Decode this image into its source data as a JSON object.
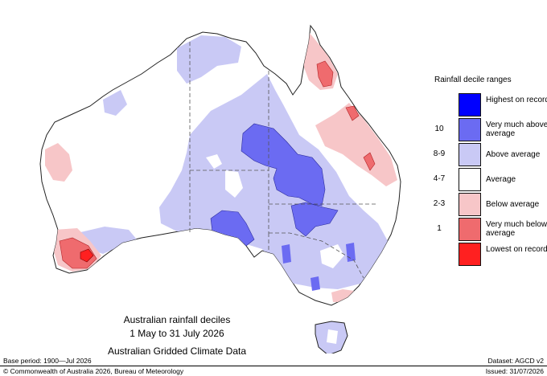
{
  "map": {
    "caption": [
      "Australian rainfall deciles",
      "1 May to 31 July 2026",
      "Australian Gridded Climate Data"
    ],
    "colors": {
      "highest": "#0000ff",
      "very_much_above": "#6b6bf2",
      "above": "#c9c9f5",
      "average": "#ffffff",
      "below": "#f7c6c8",
      "very_much_below": "#ef6b6e",
      "lowest": "#ff2020",
      "land_outline": "#222222",
      "state_border": "#555555"
    }
  },
  "legend": {
    "title": "Rainfall decile ranges",
    "items": [
      {
        "range": "",
        "label": "Highest on record",
        "color": "#0000ff"
      },
      {
        "range": "10",
        "label": "Very much above average",
        "color": "#6b6bf2"
      },
      {
        "range": "8-9",
        "label": "Above average",
        "color": "#c9c9f5"
      },
      {
        "range": "4-7",
        "label": "Average",
        "color": "#ffffff"
      },
      {
        "range": "2-3",
        "label": "Below average",
        "color": "#f7c6c8"
      },
      {
        "range": "1",
        "label": "Very much below average",
        "color": "#ef6b6e"
      },
      {
        "range": "",
        "label": "Lowest on record",
        "color": "#ff2020"
      }
    ]
  },
  "footer": {
    "base_period": "Base period: 1900—Jul 2026",
    "dataset": "Dataset: AGCD v2",
    "copyright": "© Commonwealth of Australia 2026, Bureau of Meteorology",
    "issued": "Issued: 31/07/2026"
  }
}
